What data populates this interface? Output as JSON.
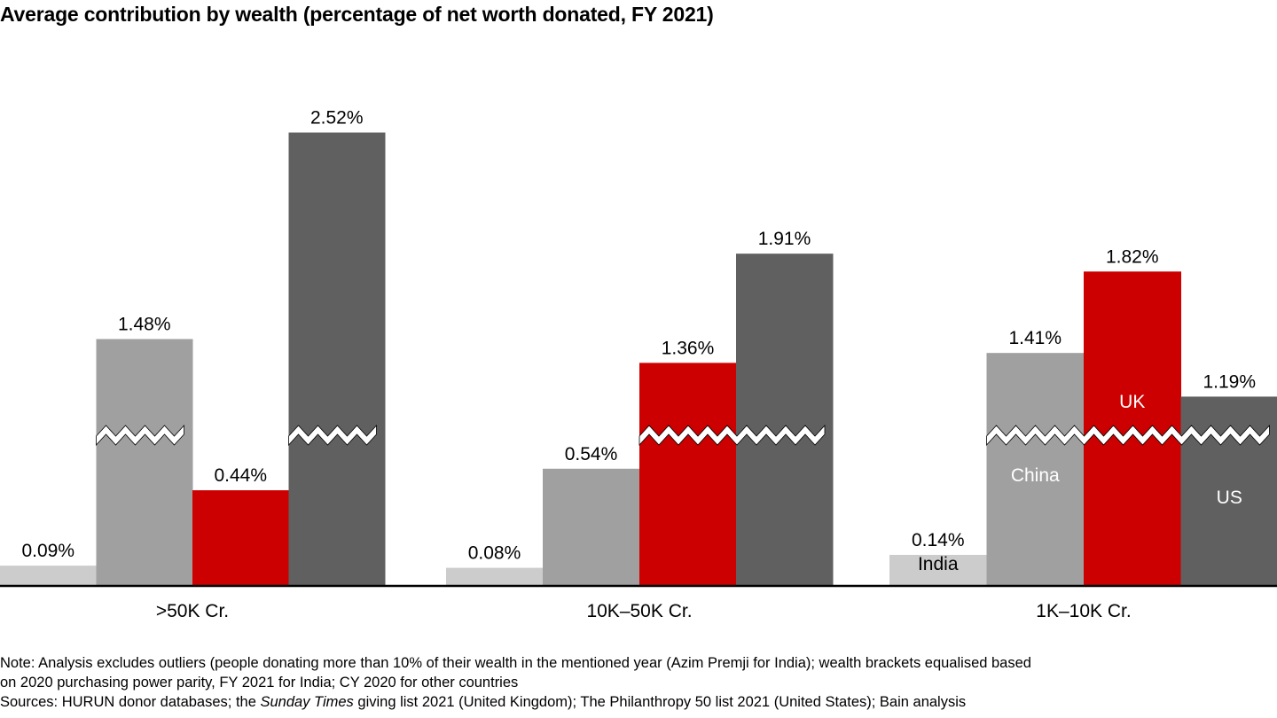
{
  "title": "Average contribution by wealth (percentage of net worth donated, FY 2021)",
  "chart_data": {
    "type": "bar",
    "title": "Average contribution by wealth (percentage of net worth donated, FY 2021)",
    "xlabel": "",
    "ylabel": "",
    "axis_break": true,
    "grid": false,
    "categories": [
      ">50K Cr.",
      "10K–50K Cr.",
      "1K–10K Cr."
    ],
    "series": [
      {
        "name": "India",
        "color": "#cccccc",
        "label_color": "#000000",
        "values": [
          0.09,
          0.08,
          0.14
        ],
        "labels": [
          "0.09%",
          "0.08%",
          "0.14%"
        ]
      },
      {
        "name": "China",
        "color": "#a0a0a0",
        "label_color": "#ffffff",
        "values": [
          1.48,
          0.54,
          1.41
        ],
        "labels": [
          "1.48%",
          "0.54%",
          "1.41%"
        ]
      },
      {
        "name": "UK",
        "color": "#cc0000",
        "label_color": "#ffffff",
        "values": [
          0.44,
          1.36,
          1.82
        ],
        "labels": [
          "0.44%",
          "1.36%",
          "1.82%"
        ]
      },
      {
        "name": "US",
        "color": "#606060",
        "label_color": "#ffffff",
        "values": [
          2.52,
          1.91,
          1.19
        ],
        "labels": [
          "2.52%",
          "1.91%",
          "1.19%"
        ]
      }
    ],
    "legend": "inline labels in last group"
  },
  "notes": {
    "note_line1": "Note: Analysis excludes outliers (people donating more than 10% of their wealth in the mentioned year (Azim Premji for India); wealth brackets equalised based",
    "note_line2": "on 2020 purchasing power parity, FY 2021 for India; CY 2020 for other countries",
    "sources_prefix": "Sources: HURUN donor databases; the ",
    "sources_italic": "Sunday Times",
    "sources_suffix": " giving list 2021 (United Kingdom); The Philanthropy 50 list 2021 (United States); Bain analysis"
  }
}
